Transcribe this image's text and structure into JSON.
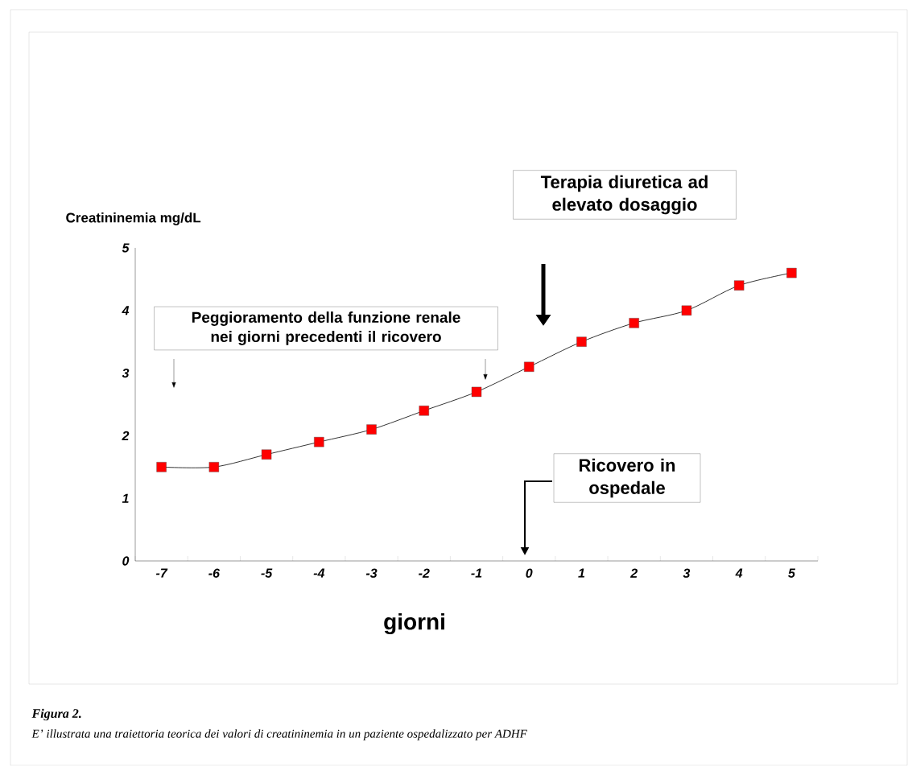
{
  "chart_data": {
    "type": "line",
    "xlabel": "giorni",
    "ylabel": "Creatininemia mg/dL",
    "categories": [
      "-7",
      "-6",
      "-5",
      "-4",
      "-3",
      "-2",
      "-1",
      "0",
      "1",
      "2",
      "3",
      "4",
      "5"
    ],
    "series": [
      {
        "color": "#ff0000",
        "values": [
          1.5,
          1.5,
          1.7,
          1.9,
          2.1,
          2.4,
          2.7,
          3.1,
          3.5,
          3.8,
          4.0,
          4.4,
          4.6
        ]
      }
    ],
    "ylim": [
      0,
      5
    ],
    "yticks": [
      0,
      1,
      2,
      3,
      4,
      5
    ],
    "marker": "square",
    "line_style": "solid",
    "annotations": [
      "Peggioramento della funzione renale nei giorni precedenti il ricovero",
      "Terapia diuretica ad elevato dosaggio",
      "Ricovero in ospedale",
      "Figura 2.",
      "E’ illustrata una traiettoria teorica dei valori di creatininemia in un paziente ospedalizzato per ADHF"
    ]
  }
}
